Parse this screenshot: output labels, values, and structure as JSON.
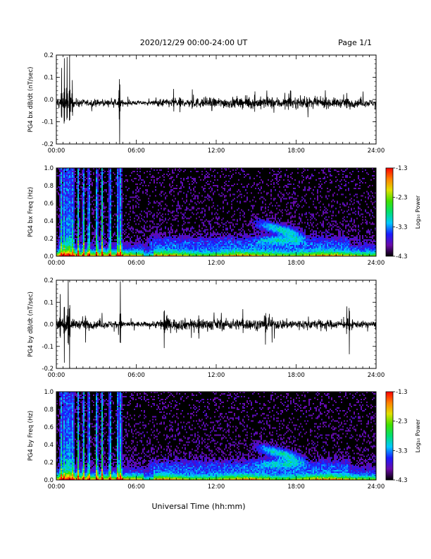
{
  "header": {
    "title": "2020/12/29  00:00-24:00 UT",
    "page_label": "Page 1/1"
  },
  "xaxis": {
    "label": "Universal Time (hh:mm)",
    "ticks": [
      "00:00",
      "06:00",
      "12:00",
      "18:00",
      "24:00"
    ],
    "tick_hours": [
      0,
      6,
      12,
      18,
      24
    ],
    "range_hours": [
      0,
      24
    ]
  },
  "colorbar": {
    "label": "Log₁₀ Power",
    "ticks": [
      "-1.3",
      "-2.3",
      "-3.3",
      "-4.3"
    ],
    "range": [
      -4.3,
      -1.3
    ],
    "colors": [
      "#000000",
      "#6a0aa8",
      "#1a1aff",
      "#00c8ff",
      "#00e070",
      "#40e000",
      "#e0e000",
      "#ff8000",
      "#ff0000"
    ]
  },
  "chart_data": [
    {
      "type": "line",
      "ylabel": "PG4 bx dB/dt (nT/sec)",
      "ylim": [
        -0.2,
        0.2
      ],
      "yticks": [
        "0.2",
        "0.1",
        "0.0",
        "-0.1",
        "-0.2"
      ],
      "ytick_values": [
        0.2,
        0.1,
        0.0,
        -0.1,
        -0.2
      ],
      "xlim": [
        0,
        24
      ],
      "baseline": -0.015,
      "events": [
        {
          "t": 0.4,
          "amp": 0.13
        },
        {
          "t": 0.6,
          "amp": 0.2
        },
        {
          "t": 0.8,
          "amp": 0.2
        },
        {
          "t": 1.0,
          "amp": 0.2
        },
        {
          "t": 1.2,
          "amp": 0.1
        },
        {
          "t": 4.7,
          "amp": 0.07
        },
        {
          "t": 4.75,
          "amp": -0.2
        },
        {
          "t": 8.8,
          "amp": 0.05
        },
        {
          "t": 10.2,
          "amp": 0.05
        },
        {
          "t": 14.9,
          "amp": 0.06
        },
        {
          "t": 21.8,
          "amp": 0.05
        }
      ],
      "noise_profile": [
        {
          "t": 0,
          "level": 0.02
        },
        {
          "t": 2,
          "level": 0.012
        },
        {
          "t": 5,
          "level": 0.01
        },
        {
          "t": 7,
          "level": 0.006
        },
        {
          "t": 8,
          "level": 0.015
        },
        {
          "t": 12,
          "level": 0.018
        },
        {
          "t": 16,
          "level": 0.02
        },
        {
          "t": 20,
          "level": 0.018
        },
        {
          "t": 24,
          "level": 0.012
        }
      ]
    },
    {
      "type": "heatmap",
      "ylabel": "PG4 bx Freq (Hz)",
      "ylim": [
        0,
        1.0
      ],
      "yticks": [
        "1.0",
        "0.8",
        "0.6",
        "0.4",
        "0.2",
        "0.0"
      ],
      "ytick_values": [
        1.0,
        0.8,
        0.6,
        0.4,
        0.2,
        0.0
      ],
      "xlim": [
        0,
        24
      ],
      "zlim": [
        -4.3,
        -1.3
      ],
      "vertical_bands": [
        0.3,
        0.5,
        0.7,
        0.8,
        1.0,
        1.2,
        1.6,
        2.0,
        2.4,
        3.0,
        3.4,
        4.0,
        4.6,
        4.8
      ],
      "enhancement_region": {
        "t_start": 14.5,
        "t_end": 19.0,
        "f_low": 0.15,
        "f_high": 0.45
      }
    },
    {
      "type": "line",
      "ylabel": "PG4 by dB/dt (nT/sec)",
      "ylim": [
        -0.2,
        0.2
      ],
      "yticks": [
        "0.2",
        "0.1",
        "0.0",
        "-0.1",
        "-0.2"
      ],
      "ytick_values": [
        0.2,
        0.1,
        0.0,
        -0.1,
        -0.2
      ],
      "xlim": [
        0,
        24
      ],
      "baseline": 0.0,
      "events": [
        {
          "t": 0.3,
          "amp": 0.13
        },
        {
          "t": 0.6,
          "amp": -0.18
        },
        {
          "t": 0.9,
          "amp": 0.2
        },
        {
          "t": 1.0,
          "amp": -0.2
        },
        {
          "t": 2.2,
          "amp": -0.08
        },
        {
          "t": 4.8,
          "amp": 0.18
        },
        {
          "t": 8.1,
          "amp": -0.12
        },
        {
          "t": 8.3,
          "amp": 0.06
        },
        {
          "t": 10.7,
          "amp": -0.07
        },
        {
          "t": 14.0,
          "amp": 0.07
        },
        {
          "t": 15.7,
          "amp": -0.1
        },
        {
          "t": 16.2,
          "amp": -0.08
        },
        {
          "t": 22.0,
          "amp": -0.13
        },
        {
          "t": 21.8,
          "amp": 0.08
        }
      ],
      "noise_profile": [
        {
          "t": 0,
          "level": 0.02
        },
        {
          "t": 2,
          "level": 0.015
        },
        {
          "t": 5,
          "level": 0.012
        },
        {
          "t": 7,
          "level": 0.008
        },
        {
          "t": 8,
          "level": 0.02
        },
        {
          "t": 12,
          "level": 0.02
        },
        {
          "t": 16,
          "level": 0.018
        },
        {
          "t": 20,
          "level": 0.016
        },
        {
          "t": 24,
          "level": 0.01
        }
      ]
    },
    {
      "type": "heatmap",
      "ylabel": "PG4 by Freq (Hz)",
      "ylim": [
        0,
        1.0
      ],
      "yticks": [
        "1.0",
        "0.8",
        "0.6",
        "0.4",
        "0.2",
        "0.0"
      ],
      "ytick_values": [
        1.0,
        0.8,
        0.6,
        0.4,
        0.2,
        0.0
      ],
      "xlim": [
        0,
        24
      ],
      "zlim": [
        -4.3,
        -1.3
      ],
      "vertical_bands": [
        0.3,
        0.5,
        0.7,
        0.8,
        1.0,
        1.2,
        1.6,
        2.0,
        2.4,
        3.0,
        3.4,
        4.0,
        4.6,
        4.8
      ],
      "enhancement_region": {
        "t_start": 14.5,
        "t_end": 19.0,
        "f_low": 0.15,
        "f_high": 0.45
      }
    }
  ]
}
